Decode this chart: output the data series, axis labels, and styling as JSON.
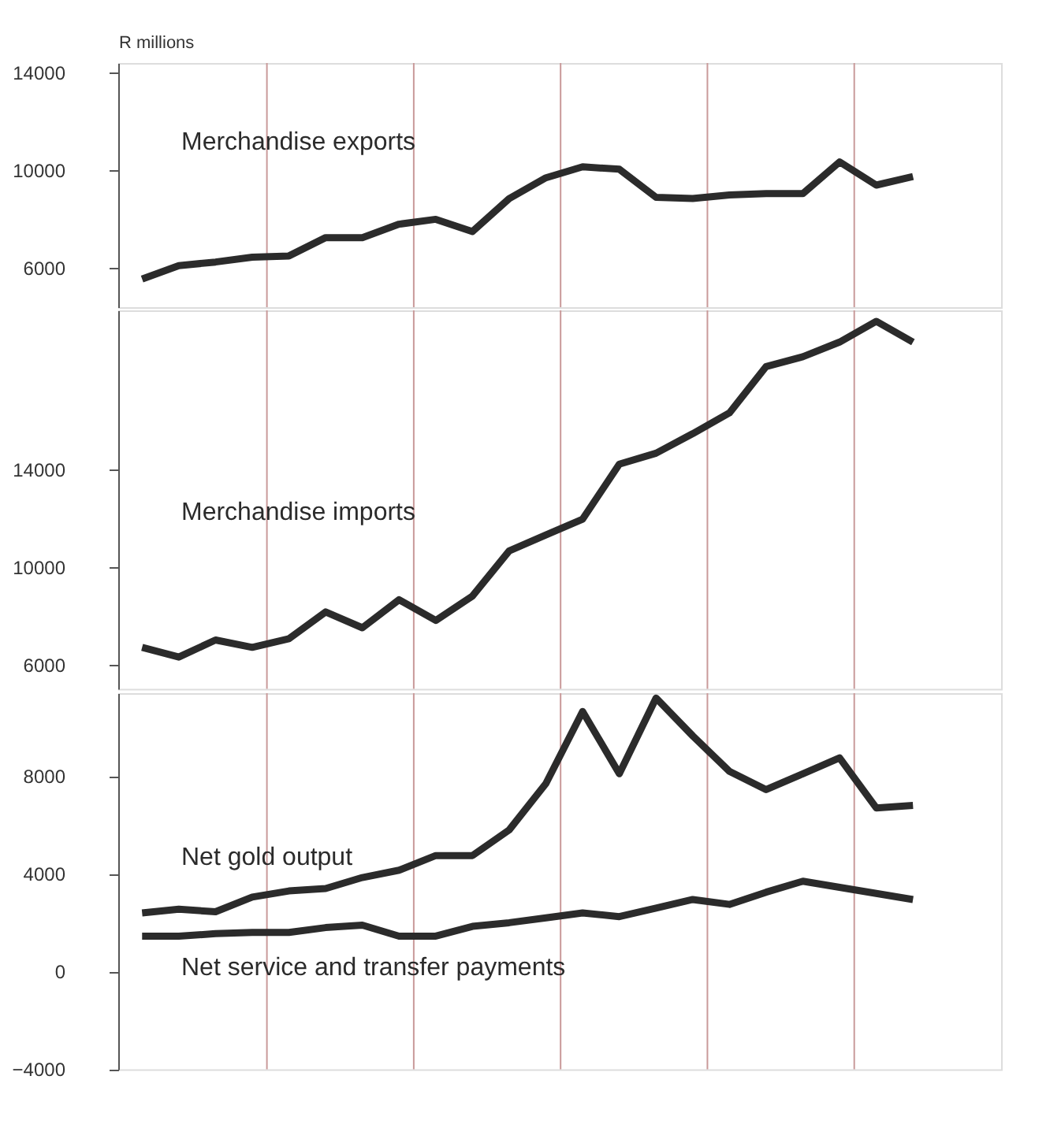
{
  "chart_data": [
    {
      "type": "line",
      "ylabel": "R millions",
      "categories": [
        null,
        null,
        null,
        null,
        null,
        null,
        null,
        null,
        null,
        null,
        null,
        null,
        null,
        null,
        null,
        null,
        null,
        null,
        null,
        null,
        null,
        null
      ],
      "ylim": [
        4400,
        14400
      ],
      "yticks": [
        6000,
        10000,
        14000
      ],
      "series": [
        {
          "name": "Merchandise exports",
          "color": "#2b2b2b",
          "values": [
            5550,
            6100,
            6250,
            6450,
            6500,
            7250,
            7250,
            7800,
            8000,
            7500,
            8850,
            9700,
            10150,
            10050,
            8900,
            8850,
            9000,
            9050,
            9050,
            10350,
            9400,
            9750
          ]
        }
      ],
      "grid": "x",
      "legend": false,
      "marker": "none",
      "tick_labels": "y",
      "line_style": "solid"
    },
    {
      "type": "line",
      "categories": [
        null,
        null,
        null,
        null,
        null,
        null,
        null,
        null,
        null,
        null,
        null,
        null,
        null,
        null,
        null,
        null,
        null,
        null,
        null,
        null,
        null,
        null
      ],
      "ylim": [
        5000,
        20500
      ],
      "yticks": [
        6000,
        10000,
        14000
      ],
      "series": [
        {
          "name": "Merchandise imports",
          "color": "#2b2b2b",
          "values": [
            6700,
            6300,
            7000,
            6700,
            7050,
            8150,
            7500,
            8650,
            7800,
            8800,
            10650,
            11300,
            11950,
            14200,
            14650,
            15450,
            16300,
            18200,
            18600,
            19200,
            20050,
            19200
          ]
        }
      ],
      "grid": "x",
      "legend": false,
      "marker": "none",
      "tick_labels": "y",
      "line_style": "solid"
    },
    {
      "type": "line",
      "categories": [
        null,
        null,
        null,
        null,
        null,
        null,
        null,
        null,
        null,
        null,
        null,
        null,
        null,
        null,
        null,
        null,
        null,
        null,
        null,
        null,
        null,
        null
      ],
      "ylim": [
        -4000,
        11400
      ],
      "yticks": [
        -4000,
        0,
        4000,
        8000
      ],
      "series": [
        {
          "name": "Net gold output",
          "color": "#2b2b2b",
          "values": [
            2400,
            2550,
            2450,
            3050,
            3300,
            3400,
            3850,
            4150,
            4750,
            4750,
            5800,
            7700,
            10650,
            8100,
            11200,
            9650,
            8200,
            7450,
            8100,
            8750,
            6700,
            6800
          ]
        },
        {
          "name": "Net service and transfer payments",
          "color": "#2b2b2b",
          "values": [
            1450,
            1450,
            1550,
            1600,
            1600,
            1800,
            1900,
            1450,
            1450,
            1850,
            2000,
            2200,
            2400,
            2250,
            2600,
            2950,
            2750,
            3250,
            3700,
            3450,
            3200,
            2950
          ]
        }
      ],
      "grid": "x",
      "legend": false,
      "marker": "none",
      "tick_labels": "y",
      "line_style": "solid"
    }
  ]
}
